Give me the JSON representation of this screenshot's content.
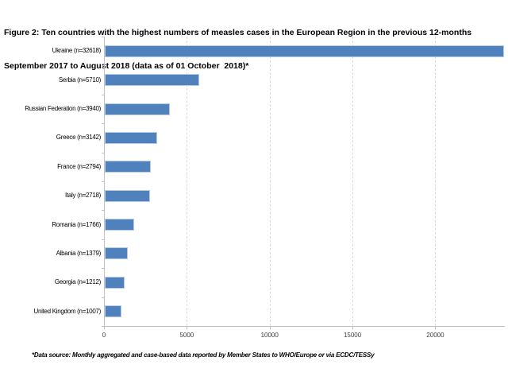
{
  "figure": {
    "title_line1": "Figure 2: Ten countries with the highest numbers of measles cases in the European Region in the previous 12-months",
    "title_line2": "September 2017 to August 2018 (data as of 01 October  2018)*",
    "footnote": "*Data source: Monthly aggregated and case-based data reported by Member States to WHO/Europe or via ECDC/TESSy"
  },
  "chart_data": {
    "type": "bar",
    "orientation": "horizontal",
    "title": "Ten countries with the highest numbers of measles cases in the European Region in the previous 12-months September 2017 to August 2018 (data as of 01 October 2018)",
    "categories": [
      "Ukraine (n=32618)",
      "Serbia (n=5710)",
      "Russian Federation (n=3940)",
      "Greece (n=3142)",
      "France (n=2794)",
      "Italy (n=2718)",
      "Romania (n=1766)",
      "Albania (n=1379)",
      "Georgia (n=1212)",
      "United Kingdom (n=1007)"
    ],
    "values": [
      32618,
      5710,
      3940,
      3142,
      2794,
      2718,
      1766,
      1379,
      1212,
      1007
    ],
    "xlabel": "",
    "ylabel": "",
    "xlim": [
      0,
      24100
    ],
    "x_ticks": [
      0,
      5000,
      10000,
      15000,
      20000
    ],
    "x_tick_labels": [
      "0",
      "5000",
      "10000",
      "15000",
      "20000"
    ],
    "grid": "vertical-dashed",
    "legend": "none",
    "bars_clipped_at_xmax": [
      "Ukraine (n=32618)"
    ],
    "bar_color": "#4f81bd",
    "bar_border_color": "#b7cbe4",
    "gridline_color": "#d9d9d9",
    "axis_color": "#c0c0c0"
  }
}
